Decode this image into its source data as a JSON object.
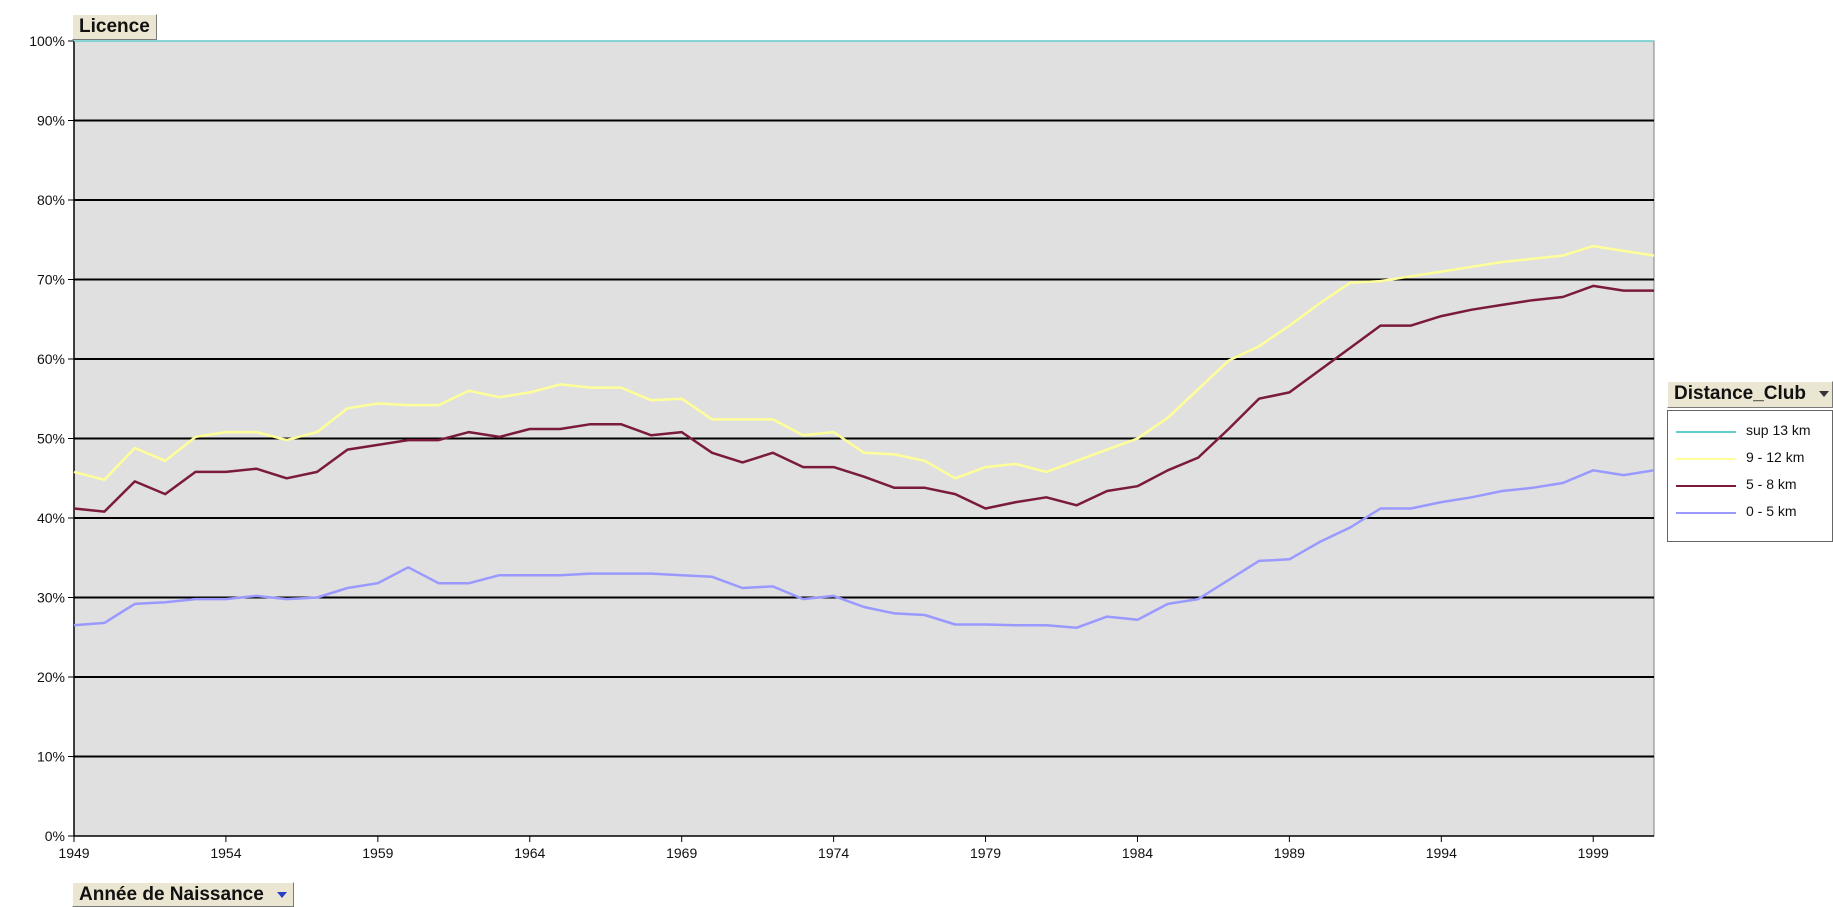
{
  "chart_data": {
    "type": "line",
    "title": "",
    "xlabel": "Année de Naissance",
    "ylabel": "Licence",
    "legend_title": "Distance_Club",
    "ylim": [
      0,
      100
    ],
    "xlim": [
      1949,
      2001
    ],
    "yticks": [
      "0%",
      "10%",
      "20%",
      "30%",
      "40%",
      "50%",
      "60%",
      "70%",
      "80%",
      "90%",
      "100%"
    ],
    "xticks": [
      "1949",
      "1954",
      "1959",
      "1964",
      "1969",
      "1974",
      "1979",
      "1984",
      "1989",
      "1994",
      "1999"
    ],
    "grid": true,
    "legend_position": "right",
    "x": [
      1949,
      1950,
      1951,
      1952,
      1953,
      1954,
      1955,
      1956,
      1957,
      1958,
      1959,
      1960,
      1961,
      1962,
      1963,
      1964,
      1965,
      1966,
      1967,
      1968,
      1969,
      1970,
      1971,
      1972,
      1973,
      1974,
      1975,
      1976,
      1977,
      1978,
      1979,
      1980,
      1981,
      1982,
      1983,
      1984,
      1985,
      1986,
      1987,
      1988,
      1989,
      1990,
      1991,
      1992,
      1993,
      1994,
      1995,
      1996,
      1997,
      1998,
      1999,
      2000,
      2001
    ],
    "series": [
      {
        "name": "sup 13 km",
        "color": "#66cccc",
        "values": [
          100,
          100,
          100,
          100,
          100,
          100,
          100,
          100,
          100,
          100,
          100,
          100,
          100,
          100,
          100,
          100,
          100,
          100,
          100,
          100,
          100,
          100,
          100,
          100,
          100,
          100,
          100,
          100,
          100,
          100,
          100,
          100,
          100,
          100,
          100,
          100,
          100,
          100,
          100,
          100,
          100,
          100,
          100,
          100,
          100,
          100,
          100,
          100,
          100,
          100,
          100,
          100,
          100
        ]
      },
      {
        "name": "9 - 12 km",
        "color": "#ffff99",
        "values": [
          45.8,
          44.8,
          48.8,
          47.2,
          50.2,
          50.8,
          50.8,
          49.8,
          50.8,
          53.8,
          54.4,
          54.2,
          54.2,
          56.0,
          55.2,
          55.8,
          56.8,
          56.4,
          56.4,
          54.8,
          55.0,
          52.4,
          52.4,
          52.4,
          50.4,
          50.8,
          48.2,
          48.0,
          47.2,
          45.0,
          46.4,
          46.8,
          45.8,
          47.2,
          48.6,
          50.0,
          52.6,
          56.2,
          59.8,
          61.6,
          64.2,
          67.0,
          69.6,
          69.8,
          70.4,
          71.0,
          71.6,
          72.2,
          72.6,
          73.0,
          74.2,
          73.6,
          73.0
        ]
      },
      {
        "name": "5 - 8 km",
        "color": "#7a1a3c",
        "values": [
          41.2,
          40.8,
          44.6,
          43.0,
          45.8,
          45.8,
          46.2,
          45.0,
          45.8,
          48.6,
          49.2,
          49.8,
          49.8,
          50.8,
          50.2,
          51.2,
          51.2,
          51.8,
          51.8,
          50.4,
          50.8,
          48.2,
          47.0,
          48.2,
          46.4,
          46.4,
          45.2,
          43.8,
          43.8,
          43.0,
          41.2,
          42.0,
          42.6,
          41.6,
          43.4,
          44.0,
          46.0,
          47.6,
          51.2,
          55.0,
          55.8,
          58.6,
          61.4,
          64.2,
          64.2,
          65.4,
          66.2,
          66.8,
          67.4,
          67.8,
          69.2,
          68.6,
          68.6
        ]
      },
      {
        "name": "0 - 5 km",
        "color": "#9999ff",
        "values": [
          26.5,
          26.8,
          29.2,
          29.4,
          29.8,
          29.8,
          30.2,
          29.8,
          30.0,
          31.2,
          31.8,
          33.8,
          31.8,
          31.8,
          32.8,
          32.8,
          32.8,
          33.0,
          33.0,
          33.0,
          32.8,
          32.6,
          31.2,
          31.4,
          29.8,
          30.2,
          28.8,
          28.0,
          27.8,
          26.6,
          26.6,
          26.5,
          26.5,
          26.2,
          27.6,
          27.2,
          29.2,
          29.8,
          32.2,
          34.6,
          34.8,
          37.0,
          38.8,
          41.2,
          41.2,
          42.0,
          42.6,
          43.4,
          43.8,
          44.4,
          46.0,
          45.4,
          46.0
        ]
      }
    ]
  },
  "ui": {
    "licence_button": "Licence",
    "annee_button": "Année de Naissance",
    "distance_button": "Distance_Club"
  }
}
